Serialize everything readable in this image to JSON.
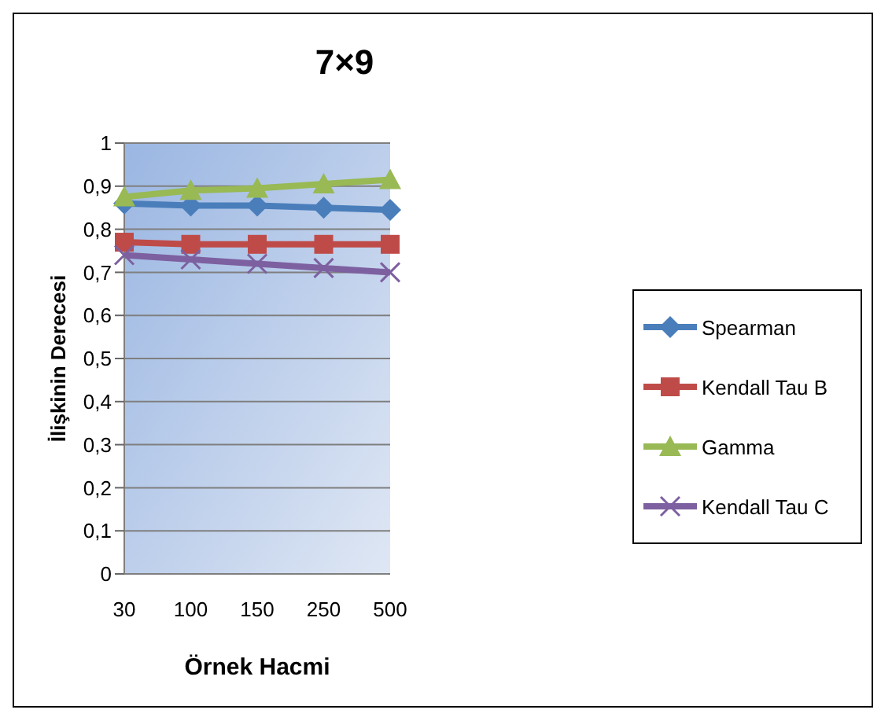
{
  "chart_data": {
    "type": "line",
    "title": "7×9",
    "xlabel": "Örnek Hacmi",
    "ylabel": "İlişkinin Derecesi",
    "categories": [
      "30",
      "100",
      "150",
      "250",
      "500"
    ],
    "series": [
      {
        "name": "Spearman",
        "color": "#4a7ebb",
        "marker": "diamond",
        "values": [
          0.86,
          0.855,
          0.855,
          0.85,
          0.845
        ]
      },
      {
        "name": "Kendall Tau B",
        "color": "#be4b48",
        "marker": "square",
        "values": [
          0.77,
          0.765,
          0.765,
          0.765,
          0.765
        ]
      },
      {
        "name": "Gamma",
        "color": "#98b954",
        "marker": "triangle",
        "values": [
          0.875,
          0.89,
          0.895,
          0.905,
          0.915
        ]
      },
      {
        "name": "Kendall Tau C",
        "color": "#7d60a0",
        "marker": "cross",
        "values": [
          0.74,
          0.73,
          0.72,
          0.71,
          0.7
        ]
      }
    ],
    "ylim": [
      0,
      1
    ],
    "yticks": [
      0,
      {
        "value": 0.1,
        "label": "0,1"
      },
      {
        "value": 0.2,
        "label": "0,2"
      },
      {
        "value": 0.3,
        "label": "0,3"
      },
      {
        "value": 0.4,
        "label": "0,4"
      },
      {
        "value": 0.5,
        "label": "0,5"
      },
      {
        "value": 0.6,
        "label": "0,6"
      },
      {
        "value": 0.7,
        "label": "0,7"
      },
      {
        "value": 0.8,
        "label": "0,8"
      },
      {
        "value": 0.9,
        "label": "0,9"
      },
      1
    ],
    "grid": "y",
    "legend": "right"
  }
}
